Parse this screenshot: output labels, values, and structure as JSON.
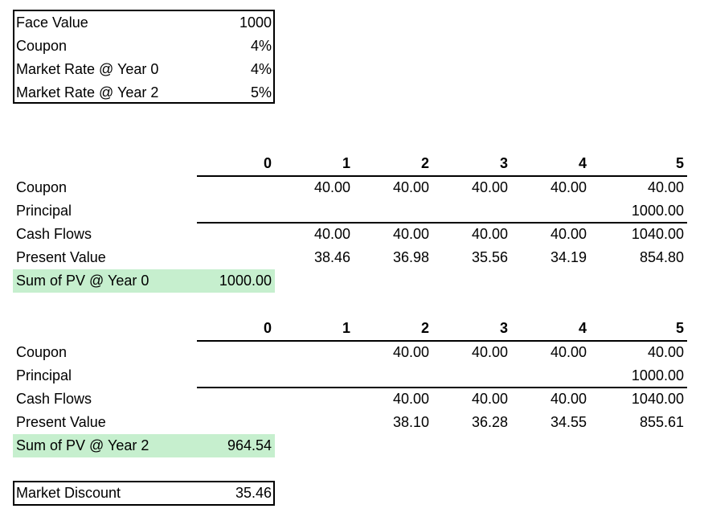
{
  "inputs": {
    "rows": [
      {
        "label": "Face Value",
        "value": "1000"
      },
      {
        "label": "Coupon",
        "value": "4%"
      },
      {
        "label": "Market Rate @ Year 0",
        "value": "4%"
      },
      {
        "label": "Market Rate @ Year 2",
        "value": "5%"
      }
    ]
  },
  "table1": {
    "headers": [
      "0",
      "1",
      "2",
      "3",
      "4",
      "5"
    ],
    "rows": [
      {
        "label": "Coupon",
        "cells": [
          "",
          "40.00",
          "40.00",
          "40.00",
          "40.00",
          "40.00"
        ]
      },
      {
        "label": "Principal",
        "cells": [
          "",
          "",
          "",
          "",
          "",
          "1000.00"
        ]
      },
      {
        "label": "Cash Flows",
        "cells": [
          "",
          "40.00",
          "40.00",
          "40.00",
          "40.00",
          "1040.00"
        ]
      },
      {
        "label": "Present Value",
        "cells": [
          "",
          "38.46",
          "36.98",
          "35.56",
          "34.19",
          "854.80"
        ]
      }
    ],
    "sum": {
      "label": "Sum of PV @ Year 0",
      "value": "1000.00"
    }
  },
  "table2": {
    "headers": [
      "0",
      "1",
      "2",
      "3",
      "4",
      "5"
    ],
    "rows": [
      {
        "label": "Coupon",
        "cells": [
          "",
          "",
          "40.00",
          "40.00",
          "40.00",
          "40.00"
        ]
      },
      {
        "label": "Principal",
        "cells": [
          "",
          "",
          "",
          "",
          "",
          "1000.00"
        ]
      },
      {
        "label": "Cash Flows",
        "cells": [
          "",
          "",
          "40.00",
          "40.00",
          "40.00",
          "1040.00"
        ]
      },
      {
        "label": "Present Value",
        "cells": [
          "",
          "",
          "38.10",
          "36.28",
          "34.55",
          "855.61"
        ]
      }
    ],
    "sum": {
      "label": "Sum of PV @ Year 2",
      "value": "964.54"
    }
  },
  "discount": {
    "label": "Market Discount",
    "value": "35.46"
  }
}
